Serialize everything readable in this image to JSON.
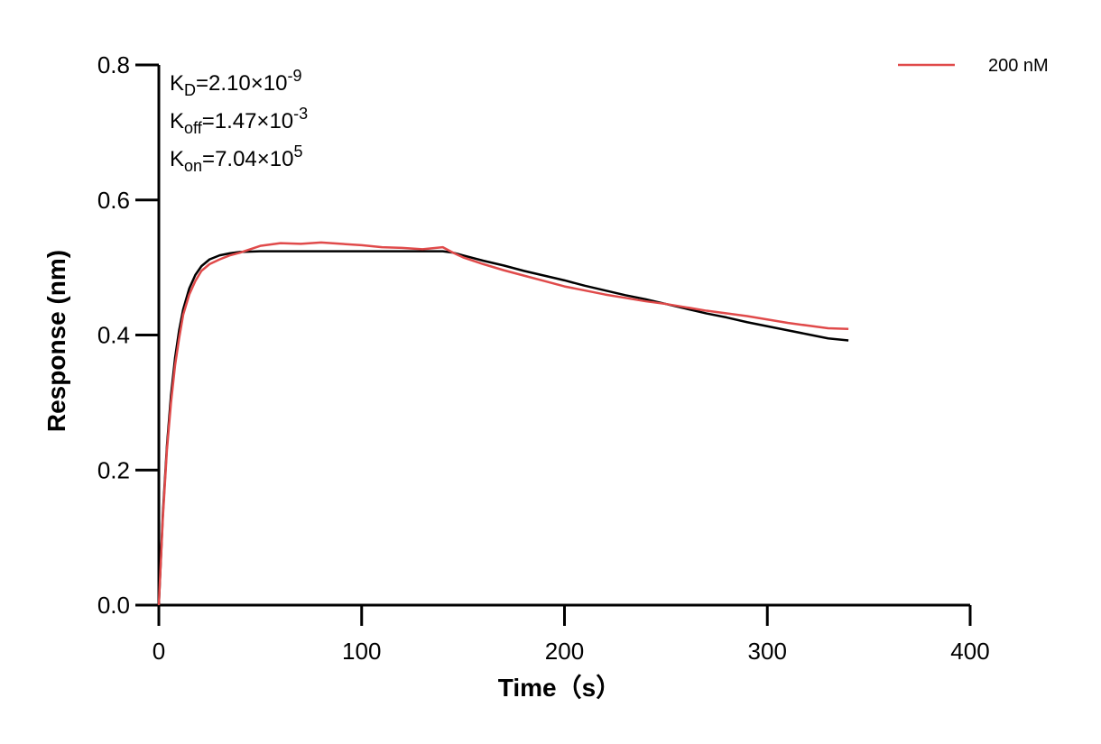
{
  "chart_data": {
    "type": "line",
    "x_label": "Time（s）",
    "y_label": "Response (nm)",
    "xlim": [
      0,
      400
    ],
    "xticks": [
      0,
      100,
      200,
      300,
      400
    ],
    "ylim": [
      0,
      0.8
    ],
    "yticks": [
      {
        "value": 0,
        "label": "0.0"
      },
      0.2,
      0.4,
      0.6,
      0.8
    ],
    "legend_position": "top right",
    "annotations": [
      {
        "symbol": "K",
        "subscript": "D",
        "text": "=2.10×10",
        "superscript": "-9"
      },
      {
        "symbol": "K",
        "subscript": "off",
        "text": "=1.47×10",
        "superscript": "-3"
      },
      {
        "symbol": "K",
        "subscript": "on",
        "text": "=7.04×10",
        "superscript": "5"
      }
    ],
    "x": [
      0,
      2,
      4,
      6,
      8,
      10,
      12,
      15,
      18,
      21,
      25,
      30,
      35,
      40,
      50,
      60,
      70,
      80,
      90,
      100,
      110,
      120,
      130,
      140,
      145,
      150,
      160,
      170,
      180,
      190,
      200,
      210,
      220,
      230,
      240,
      250,
      260,
      270,
      280,
      290,
      300,
      310,
      320,
      330,
      340
    ],
    "series": [
      {
        "name": "200 nM",
        "color": "#e04a4a",
        "width": 2.5,
        "values": [
          0,
          0.13,
          0.23,
          0.3,
          0.355,
          0.395,
          0.43,
          0.46,
          0.48,
          0.495,
          0.505,
          0.512,
          0.518,
          0.522,
          0.532,
          0.536,
          0.535,
          0.537,
          0.535,
          0.533,
          0.53,
          0.529,
          0.527,
          0.53,
          0.522,
          0.515,
          0.505,
          0.496,
          0.488,
          0.48,
          0.472,
          0.466,
          0.46,
          0.455,
          0.45,
          0.446,
          0.441,
          0.436,
          0.432,
          0.428,
          0.423,
          0.418,
          0.414,
          0.41,
          0.409
        ]
      },
      {
        "color": "#000000",
        "width": 2.5,
        "values": [
          0,
          0.136,
          0.236,
          0.311,
          0.366,
          0.407,
          0.438,
          0.469,
          0.489,
          0.502,
          0.512,
          0.518,
          0.521,
          0.523,
          0.524,
          0.524,
          0.524,
          0.524,
          0.524,
          0.524,
          0.524,
          0.524,
          0.524,
          0.524,
          0.522,
          0.518,
          0.51,
          0.503,
          0.495,
          0.488,
          0.481,
          0.473,
          0.466,
          0.459,
          0.453,
          0.446,
          0.439,
          0.432,
          0.426,
          0.419,
          0.413,
          0.407,
          0.401,
          0.395,
          0.392
        ]
      }
    ]
  }
}
